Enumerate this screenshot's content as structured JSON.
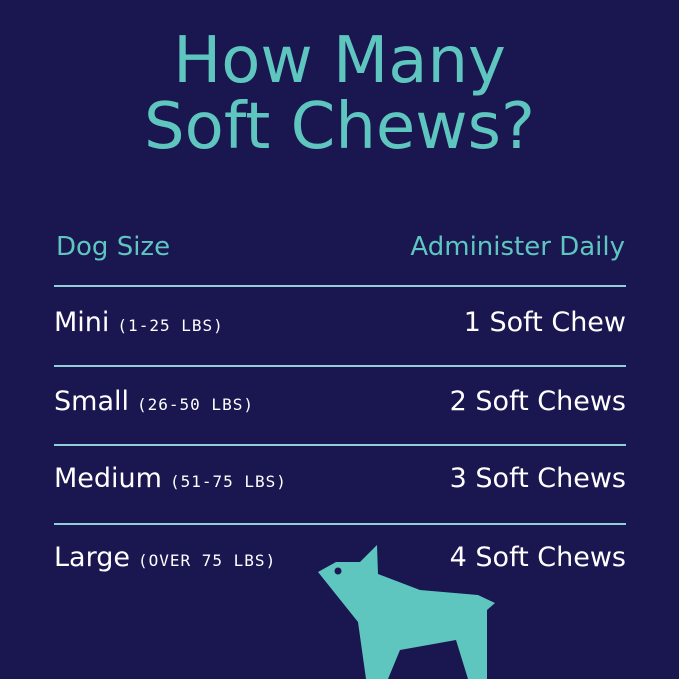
{
  "title_line1": "How Many",
  "title_line2": "Soft Chews?",
  "header": {
    "left": "Dog Size",
    "right": "Administer Daily"
  },
  "rows": [
    {
      "size": "Mini",
      "range": "(1-25 LBS)",
      "dose": "1 Soft Chew"
    },
    {
      "size": "Small",
      "range": "(26-50 LBS)",
      "dose": "2 Soft Chews"
    },
    {
      "size": "Medium",
      "range": "(51-75 LBS)",
      "dose": "3 Soft Chews"
    },
    {
      "size": "Large",
      "range": "(OVER 75 LBS)",
      "dose": "4 Soft Chews"
    }
  ],
  "colors": {
    "background": "#1a1650",
    "accent": "#5ec5bf",
    "divider": "#8fd0d8"
  },
  "icon": "dog-silhouette-icon"
}
